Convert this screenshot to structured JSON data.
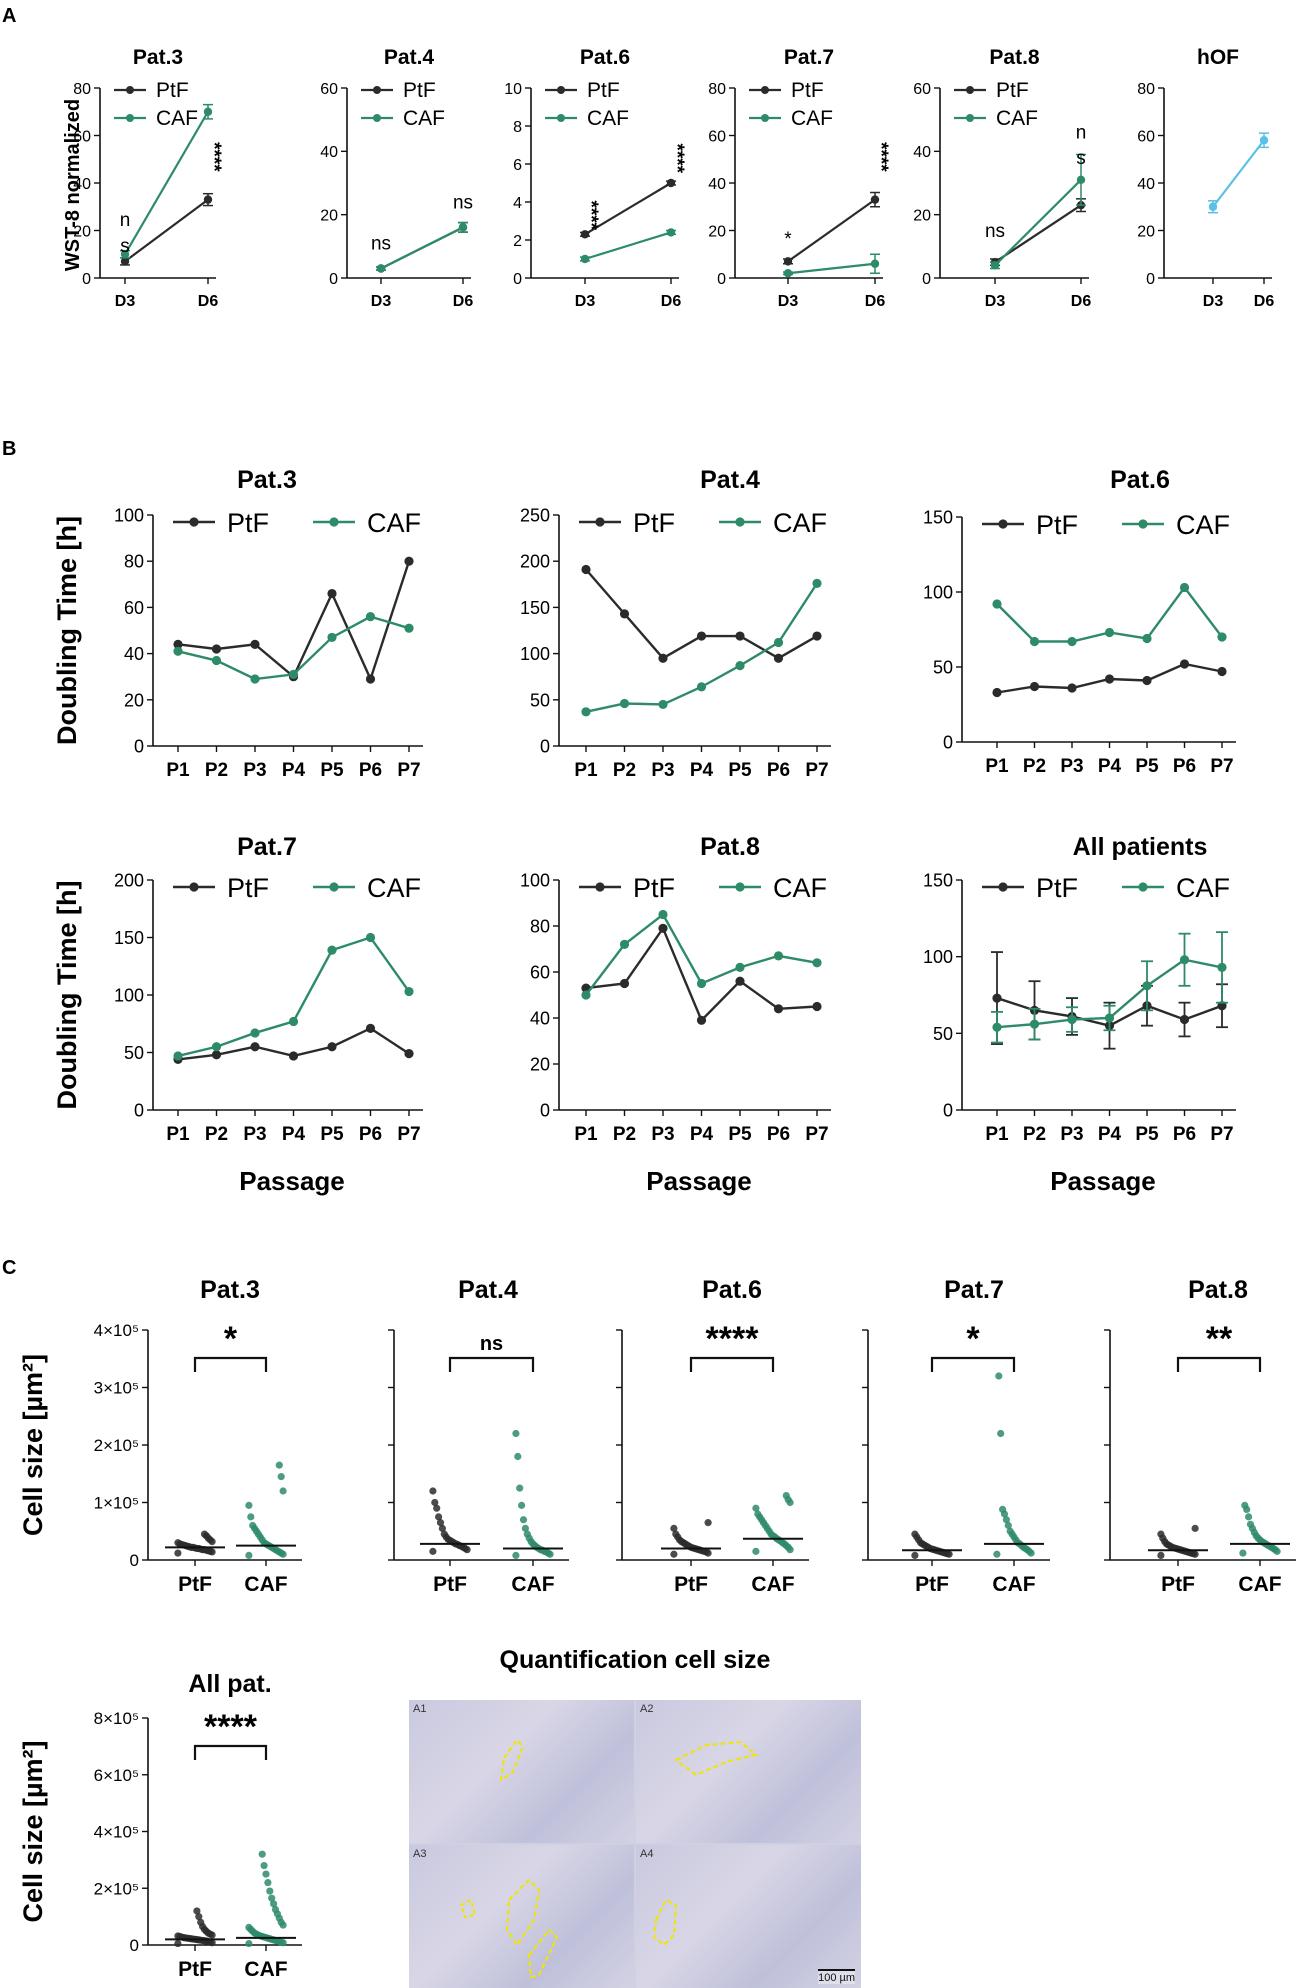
{
  "panel_labels": [
    "A",
    "B",
    "C"
  ],
  "chart_data": [
    {
      "id": "a1",
      "type": "line",
      "title": "Pat.3",
      "ylabel": "WST-8 normalized",
      "categories": [
        "D3",
        "D6"
      ],
      "ylim": [
        0,
        80
      ],
      "yticks": [
        0,
        20,
        40,
        60,
        80
      ],
      "series": [
        {
          "name": "PtF",
          "values": [
            7,
            33
          ],
          "err": [
            1.5,
            2.5
          ]
        },
        {
          "name": "CAF",
          "values": [
            10,
            70
          ],
          "err": [
            1.5,
            3
          ]
        }
      ],
      "annotations": [
        {
          "text": "n",
          "cat": 0,
          "y": 22
        },
        {
          "text": "s",
          "cat": 0,
          "y": 11
        },
        {
          "text": "****",
          "cat": 1,
          "y": 51,
          "rotate": true
        }
      ]
    },
    {
      "id": "a2",
      "type": "line",
      "title": "Pat.4",
      "categories": [
        "D3",
        "D6"
      ],
      "ylim": [
        0,
        60
      ],
      "yticks": [
        0,
        20,
        40,
        60
      ],
      "series": [
        {
          "name": "PtF",
          "values": [
            3,
            16
          ],
          "err": [
            0.5,
            1.5
          ]
        },
        {
          "name": "CAF",
          "values": [
            3,
            16
          ],
          "err": [
            0.5,
            1.5
          ]
        }
      ],
      "annotations": [
        {
          "text": "ns",
          "cat": 0,
          "y": 9
        },
        {
          "text": "ns",
          "cat": 1,
          "y": 22
        }
      ]
    },
    {
      "id": "a3",
      "type": "line",
      "title": "Pat.6",
      "categories": [
        "D3",
        "D6"
      ],
      "ylim": [
        0,
        10
      ],
      "yticks": [
        0,
        2,
        4,
        6,
        8,
        10
      ],
      "series": [
        {
          "name": "PtF",
          "values": [
            2.3,
            5.0
          ],
          "err": [
            0.1,
            0.1
          ]
        },
        {
          "name": "CAF",
          "values": [
            1.0,
            2.4
          ],
          "err": [
            0.1,
            0.1
          ]
        }
      ],
      "annotations": [
        {
          "text": "****",
          "cat": 0,
          "y": 3.3,
          "rotate": true
        },
        {
          "text": "****",
          "cat": 1,
          "y": 6.3,
          "rotate": true
        }
      ]
    },
    {
      "id": "a4",
      "type": "line",
      "title": "Pat.7",
      "categories": [
        "D3",
        "D6"
      ],
      "ylim": [
        0,
        80
      ],
      "yticks": [
        0,
        20,
        40,
        60,
        80
      ],
      "series": [
        {
          "name": "PtF",
          "values": [
            7,
            33
          ],
          "err": [
            1,
            3
          ]
        },
        {
          "name": "CAF",
          "values": [
            2,
            6
          ],
          "err": [
            0.5,
            4
          ]
        }
      ],
      "annotations": [
        {
          "text": "*",
          "cat": 0,
          "y": 14
        },
        {
          "text": "****",
          "cat": 1,
          "y": 51,
          "rotate": true
        }
      ]
    },
    {
      "id": "a5",
      "type": "line",
      "title": "Pat.8",
      "categories": [
        "D3",
        "D6"
      ],
      "ylim": [
        0,
        60
      ],
      "yticks": [
        0,
        20,
        40,
        60
      ],
      "series": [
        {
          "name": "PtF",
          "values": [
            5,
            23
          ],
          "err": [
            1,
            2
          ]
        },
        {
          "name": "CAF",
          "values": [
            4,
            31
          ],
          "err": [
            1,
            8
          ]
        }
      ],
      "annotations": [
        {
          "text": "ns",
          "cat": 0,
          "y": 13
        },
        {
          "text": "n",
          "cat": 1,
          "y": 44
        },
        {
          "text": "s",
          "cat": 1,
          "y": 36
        }
      ]
    },
    {
      "id": "a6",
      "type": "line",
      "title": "hOF",
      "categories": [
        "D3",
        "D6"
      ],
      "ylim": [
        0,
        80
      ],
      "yticks": [
        0,
        20,
        40,
        60,
        80
      ],
      "series": [
        {
          "name": "hOF",
          "values": [
            30,
            58
          ],
          "err": [
            2.5,
            3
          ]
        }
      ],
      "annotations": []
    },
    {
      "id": "b1",
      "type": "line",
      "title": "Pat.3",
      "ylabel": "Doubling Time [h]",
      "categories": [
        "P1",
        "P2",
        "P3",
        "P4",
        "P5",
        "P6",
        "P7"
      ],
      "ylim": [
        0,
        100
      ],
      "yticks": [
        0,
        20,
        40,
        60,
        80,
        100
      ],
      "series": [
        {
          "name": "PtF",
          "values": [
            44,
            42,
            44,
            30,
            66,
            29,
            80
          ]
        },
        {
          "name": "CAF",
          "values": [
            41,
            37,
            29,
            31,
            47,
            56,
            51
          ]
        }
      ]
    },
    {
      "id": "b2",
      "type": "line",
      "title": "Pat.4",
      "categories": [
        "P1",
        "P2",
        "P3",
        "P4",
        "P5",
        "P6",
        "P7"
      ],
      "ylim": [
        0,
        250
      ],
      "yticks": [
        0,
        50,
        100,
        150,
        200,
        250
      ],
      "series": [
        {
          "name": "PtF",
          "values": [
            191,
            143,
            95,
            119,
            119,
            95,
            119
          ]
        },
        {
          "name": "CAF",
          "values": [
            37,
            46,
            45,
            64,
            87,
            112,
            176
          ]
        }
      ]
    },
    {
      "id": "b3",
      "type": "line",
      "title": "Pat.6",
      "categories": [
        "P1",
        "P2",
        "P3",
        "P4",
        "P5",
        "P6",
        "P7"
      ],
      "ylim": [
        0,
        150
      ],
      "yticks": [
        0,
        50,
        100,
        150
      ],
      "series": [
        {
          "name": "PtF",
          "values": [
            33,
            37,
            36,
            42,
            41,
            52,
            47
          ]
        },
        {
          "name": "CAF",
          "values": [
            92,
            67,
            67,
            73,
            69,
            103,
            70
          ]
        }
      ]
    },
    {
      "id": "b4",
      "type": "line",
      "title": "Pat.7",
      "ylabel": "Doubling Time [h]",
      "xlabel": "Passage",
      "categories": [
        "P1",
        "P2",
        "P3",
        "P4",
        "P5",
        "P6",
        "P7"
      ],
      "ylim": [
        0,
        200
      ],
      "yticks": [
        0,
        50,
        100,
        150,
        200
      ],
      "series": [
        {
          "name": "PtF",
          "values": [
            44,
            48,
            55,
            47,
            55,
            71,
            49
          ]
        },
        {
          "name": "CAF",
          "values": [
            47,
            55,
            67,
            77,
            139,
            150,
            103
          ]
        }
      ]
    },
    {
      "id": "b5",
      "type": "line",
      "title": "Pat.8",
      "xlabel": "Passage",
      "categories": [
        "P1",
        "P2",
        "P3",
        "P4",
        "P5",
        "P6",
        "P7"
      ],
      "ylim": [
        0,
        100
      ],
      "yticks": [
        0,
        20,
        40,
        60,
        80,
        100
      ],
      "series": [
        {
          "name": "PtF",
          "values": [
            53,
            55,
            79,
            39,
            56,
            44,
            45
          ]
        },
        {
          "name": "CAF",
          "values": [
            50,
            72,
            85,
            55,
            62,
            67,
            64
          ]
        }
      ]
    },
    {
      "id": "b6",
      "type": "line",
      "title": "All patients",
      "xlabel": "Passage",
      "categories": [
        "P1",
        "P2",
        "P3",
        "P4",
        "P5",
        "P6",
        "P7"
      ],
      "ylim": [
        0,
        150
      ],
      "yticks": [
        0,
        50,
        100,
        150
      ],
      "series": [
        {
          "name": "PtF",
          "values": [
            73,
            65,
            61,
            55,
            68,
            59,
            68
          ],
          "err": [
            30,
            19,
            12,
            15,
            13,
            11,
            14
          ]
        },
        {
          "name": "CAF",
          "values": [
            54,
            56,
            59,
            60,
            81,
            98,
            93
          ],
          "err": [
            10,
            10,
            8,
            8,
            16,
            17,
            23
          ]
        }
      ]
    },
    {
      "id": "c1",
      "type": "scatter",
      "title": "Pat.3",
      "ylabel": "Cell size [µm²]",
      "categories": [
        "PtF",
        "CAF"
      ],
      "ylim": [
        0,
        400000
      ],
      "yticks": [
        "0",
        "1×10⁵",
        "2×10⁵",
        "3×10⁵",
        "4×10⁵"
      ],
      "ytick_values": [
        0,
        100000,
        200000,
        300000,
        400000
      ],
      "sig": "*",
      "groups": [
        {
          "name": "PtF",
          "median": 22000,
          "points": [
            12000,
            14000,
            15000,
            16000,
            17000,
            18000,
            18000,
            19000,
            20000,
            20000,
            21000,
            22000,
            22000,
            23000,
            24000,
            25000,
            26000,
            27000,
            28000,
            30000,
            32000,
            35000,
            38000,
            42000,
            45000
          ]
        },
        {
          "name": "CAF",
          "median": 25000,
          "points": [
            8000,
            10000,
            12000,
            14000,
            16000,
            18000,
            20000,
            22000,
            24000,
            26000,
            28000,
            30000,
            35000,
            40000,
            45000,
            50000,
            55000,
            60000,
            75000,
            95000,
            120000,
            145000,
            165000
          ]
        }
      ]
    },
    {
      "id": "c2",
      "type": "scatter",
      "title": "Pat.4",
      "categories": [
        "PtF",
        "CAF"
      ],
      "ylim": [
        0,
        400000
      ],
      "ytick_values": [
        0,
        100000,
        200000,
        300000,
        400000
      ],
      "sig": "ns",
      "groups": [
        {
          "name": "PtF",
          "median": 28000,
          "points": [
            15000,
            18000,
            20000,
            22000,
            24000,
            25000,
            27000,
            28000,
            30000,
            32000,
            34000,
            36000,
            40000,
            45000,
            55000,
            65000,
            75000,
            90000,
            100000,
            120000
          ]
        },
        {
          "name": "CAF",
          "median": 20000,
          "points": [
            8000,
            10000,
            12000,
            14000,
            15000,
            17000,
            18000,
            20000,
            22000,
            25000,
            28000,
            32000,
            38000,
            45000,
            55000,
            70000,
            95000,
            125000,
            180000,
            220000
          ]
        }
      ]
    },
    {
      "id": "c3",
      "type": "scatter",
      "title": "Pat.6",
      "categories": [
        "PtF",
        "CAF"
      ],
      "ylim": [
        0,
        400000
      ],
      "ytick_values": [
        0,
        100000,
        200000,
        300000,
        400000
      ],
      "sig": "****",
      "groups": [
        {
          "name": "PtF",
          "median": 20000,
          "points": [
            10000,
            12000,
            14000,
            15000,
            16000,
            17000,
            18000,
            19000,
            20000,
            21000,
            22000,
            24000,
            26000,
            28000,
            30000,
            32000,
            35000,
            40000,
            45000,
            55000,
            65000
          ]
        },
        {
          "name": "CAF",
          "median": 37000,
          "points": [
            15000,
            18000,
            22000,
            25000,
            28000,
            30000,
            33000,
            35000,
            37000,
            40000,
            42000,
            45000,
            50000,
            55000,
            60000,
            65000,
            70000,
            75000,
            80000,
            90000,
            100000,
            105000,
            112000
          ]
        }
      ]
    },
    {
      "id": "c4",
      "type": "scatter",
      "title": "Pat.7",
      "categories": [
        "PtF",
        "CAF"
      ],
      "ylim": [
        0,
        400000
      ],
      "ytick_values": [
        0,
        100000,
        200000,
        300000,
        400000
      ],
      "sig": "*",
      "groups": [
        {
          "name": "PtF",
          "median": 17000,
          "points": [
            8000,
            10000,
            11000,
            12000,
            13000,
            14000,
            15000,
            16000,
            17000,
            18000,
            19000,
            20000,
            22000,
            24000,
            26000,
            28000,
            30000,
            35000,
            40000,
            45000
          ]
        },
        {
          "name": "CAF",
          "median": 28000,
          "points": [
            10000,
            12000,
            15000,
            18000,
            20000,
            22000,
            25000,
            28000,
            30000,
            35000,
            40000,
            45000,
            50000,
            60000,
            70000,
            80000,
            88000,
            220000,
            320000
          ]
        }
      ]
    },
    {
      "id": "c5",
      "type": "scatter",
      "title": "Pat.8",
      "categories": [
        "PtF",
        "CAF"
      ],
      "ylim": [
        0,
        400000
      ],
      "ytick_values": [
        0,
        100000,
        200000,
        300000,
        400000
      ],
      "sig": "**",
      "groups": [
        {
          "name": "PtF",
          "median": 17000,
          "points": [
            8000,
            10000,
            11000,
            12000,
            13000,
            14000,
            15000,
            16000,
            17000,
            18000,
            19000,
            20000,
            21000,
            22000,
            24000,
            26000,
            28000,
            32000,
            38000,
            45000,
            55000
          ]
        },
        {
          "name": "CAF",
          "median": 28000,
          "points": [
            12000,
            15000,
            18000,
            20000,
            22000,
            24000,
            26000,
            28000,
            30000,
            32000,
            35000,
            38000,
            42000,
            48000,
            55000,
            62000,
            75000,
            88000,
            95000
          ]
        }
      ]
    },
    {
      "id": "c6",
      "type": "scatter",
      "title": "All pat.",
      "ylabel": "Cell size [µm²]",
      "categories": [
        "PtF",
        "CAF"
      ],
      "ylim": [
        0,
        800000
      ],
      "yticks": [
        "0",
        "2×10⁵",
        "4×10⁵",
        "6×10⁵",
        "8×10⁵"
      ],
      "ytick_values": [
        0,
        200000,
        400000,
        600000,
        800000
      ],
      "sig": "****",
      "groups": [
        {
          "name": "PtF",
          "median": 20000,
          "points": [
            5000,
            8000,
            10000,
            12000,
            14000,
            15000,
            16000,
            17000,
            18000,
            19000,
            20000,
            21000,
            22000,
            23000,
            24000,
            25000,
            26000,
            28000,
            30000,
            32000,
            35000,
            38000,
            42000,
            48000,
            55000,
            65000,
            80000,
            100000,
            120000
          ]
        },
        {
          "name": "CAF",
          "median": 25000,
          "points": [
            5000,
            8000,
            10000,
            12000,
            14000,
            16000,
            18000,
            20000,
            22000,
            24000,
            26000,
            28000,
            30000,
            32000,
            35000,
            38000,
            42000,
            48000,
            55000,
            62000,
            70000,
            80000,
            95000,
            110000,
            125000,
            145000,
            165000,
            190000,
            220000,
            250000,
            280000,
            320000
          ]
        }
      ]
    }
  ],
  "quantification": {
    "title": "Quantification cell size",
    "image_labels": [
      "A1",
      "A2",
      "A3",
      "A4"
    ],
    "scale_bar": "100 µm"
  },
  "colors": {
    "PtF": "#2b2b2b",
    "CAF": "#2e8b68",
    "hOF": "#5bbfe6"
  }
}
